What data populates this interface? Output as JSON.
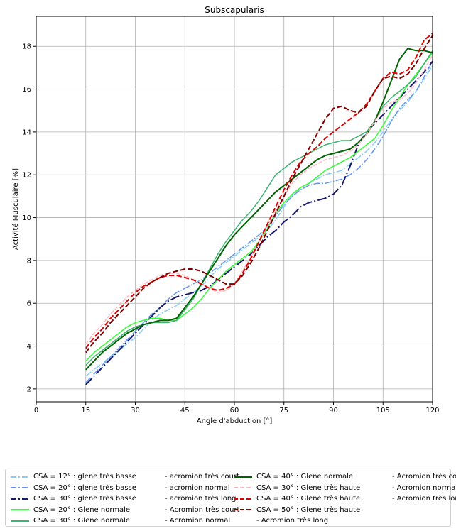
{
  "chart_data": {
    "type": "line",
    "title": "Subscapularis",
    "xlabel": "Angle d'abduction [°]",
    "ylabel": "Activité Musculaire [%]",
    "xlim": [
      0,
      120
    ],
    "ylim": [
      1.4,
      19.4
    ],
    "xticks": [
      "0",
      "15",
      "30",
      "45",
      "60",
      "75",
      "90",
      "105",
      "120"
    ],
    "xtick_values": [
      0,
      15,
      30,
      45,
      60,
      75,
      90,
      105,
      120
    ],
    "yticks": [
      "2",
      "4",
      "6",
      "8",
      "10",
      "12",
      "14",
      "16",
      "18"
    ],
    "ytick_values": [
      2,
      4,
      6,
      8,
      10,
      12,
      14,
      16,
      18
    ],
    "grid": true,
    "legend_position": "below",
    "x": [
      15,
      17.5,
      20,
      22.5,
      25,
      27.5,
      30,
      32.5,
      35,
      37.5,
      40,
      42.5,
      45,
      47.5,
      50,
      52.5,
      55,
      57.5,
      60,
      62.5,
      65,
      67.5,
      70,
      72.5,
      75,
      77.5,
      80,
      82.5,
      85,
      87.5,
      90,
      92.5,
      95,
      97.5,
      100,
      102.5,
      105,
      107.5,
      110,
      112.5,
      115,
      117.5,
      120
    ],
    "series": [
      {
        "name": "CSA = 12° : glene très basse",
        "color": "#87cefa",
        "dash": "dashdot",
        "width": 1.5,
        "values": [
          2.6,
          2.9,
          3.2,
          3.5,
          3.8,
          4.1,
          4.4,
          4.8,
          5.2,
          5.5,
          5.7,
          5.9,
          6.2,
          6.5,
          6.8,
          7.2,
          7.6,
          7.9,
          8.2,
          8.5,
          8.8,
          9.1,
          9.4,
          9.9,
          10.5,
          11.0,
          11.4,
          11.6,
          11.8,
          12.0,
          12.1,
          12.2,
          12.5,
          12.8,
          13.1,
          13.5,
          14.0,
          14.6,
          15.0,
          15.4,
          15.9,
          16.5,
          17.1
        ]
      },
      {
        "name": "CSA = 20° : glene très basse",
        "color": "#6495ed",
        "dash": "dashdot",
        "width": 1.5,
        "values": [
          2.3,
          2.7,
          3.1,
          3.5,
          3.9,
          4.3,
          4.7,
          5.1,
          5.5,
          5.8,
          6.2,
          6.5,
          6.7,
          6.9,
          7.1,
          7.4,
          7.7,
          8.0,
          8.3,
          8.6,
          8.9,
          9.2,
          9.6,
          10.1,
          10.6,
          11.0,
          11.3,
          11.5,
          11.6,
          11.6,
          11.7,
          11.8,
          12.0,
          12.3,
          12.7,
          13.2,
          13.8,
          14.5,
          15.1,
          15.5,
          15.9,
          16.6,
          17.3
        ]
      },
      {
        "name": "CSA = 30° : glene très basse",
        "color": "#191970",
        "dash": "dashdot",
        "width": 2,
        "values": [
          2.2,
          2.6,
          3.0,
          3.4,
          3.8,
          4.2,
          4.6,
          5.0,
          5.4,
          5.8,
          6.1,
          6.3,
          6.4,
          6.5,
          6.6,
          6.8,
          7.1,
          7.4,
          7.7,
          8.0,
          8.3,
          8.7,
          9.1,
          9.4,
          9.8,
          10.1,
          10.5,
          10.7,
          10.8,
          10.9,
          11.1,
          11.5,
          12.4,
          13.4,
          14.0,
          14.4,
          14.8,
          15.2,
          15.6,
          16.0,
          16.4,
          16.8,
          17.3
        ]
      },
      {
        "name": "CSA = 20° : Glene normale",
        "color": "#32ff32",
        "dash": "solid",
        "width": 1.5,
        "values": [
          3.3,
          3.7,
          4.0,
          4.3,
          4.6,
          4.9,
          5.1,
          5.2,
          5.3,
          5.3,
          5.2,
          5.2,
          5.5,
          5.8,
          6.2,
          6.7,
          7.1,
          7.5,
          7.8,
          8.1,
          8.4,
          8.9,
          9.5,
          10.2,
          10.7,
          11.1,
          11.4,
          11.6,
          11.9,
          12.2,
          12.4,
          12.6,
          12.8,
          13.1,
          13.4,
          13.7,
          14.3,
          15.0,
          15.6,
          16.2,
          16.7,
          17.2,
          17.7
        ]
      },
      {
        "name": "CSA = 30° : Glene normale",
        "color": "#3cb371",
        "dash": "solid",
        "width": 1.5,
        "values": [
          3.1,
          3.5,
          3.8,
          4.1,
          4.4,
          4.7,
          4.9,
          5.0,
          5.1,
          5.1,
          5.1,
          5.2,
          5.7,
          6.2,
          6.9,
          7.6,
          8.3,
          8.9,
          9.4,
          9.9,
          10.3,
          10.8,
          11.4,
          12.0,
          12.3,
          12.6,
          12.8,
          13.0,
          13.2,
          13.4,
          13.5,
          13.6,
          13.6,
          13.8,
          14.0,
          14.5,
          15.2,
          15.6,
          15.9,
          16.2,
          16.6,
          17.2,
          17.8
        ]
      },
      {
        "name": "CSA = 40° : Glene normale",
        "color": "#006400",
        "dash": "solid",
        "width": 2,
        "values": [
          2.9,
          3.3,
          3.7,
          4.0,
          4.3,
          4.6,
          4.8,
          5.0,
          5.1,
          5.2,
          5.2,
          5.3,
          5.8,
          6.3,
          6.9,
          7.5,
          8.1,
          8.7,
          9.2,
          9.6,
          10.0,
          10.4,
          10.8,
          11.2,
          11.5,
          11.8,
          12.1,
          12.4,
          12.7,
          12.9,
          13.0,
          13.1,
          13.2,
          13.5,
          13.9,
          14.5,
          15.4,
          16.4,
          17.4,
          17.9,
          17.8,
          17.8,
          17.7
        ]
      },
      {
        "name": "CSA = 30° : Glene très haute",
        "color": "#ffb6c1",
        "dash": "dashed",
        "width": 1.5,
        "values": [
          4.1,
          4.6,
          5.0,
          5.5,
          5.9,
          6.3,
          6.6,
          6.9,
          7.1,
          7.3,
          7.4,
          7.4,
          7.3,
          7.1,
          6.9,
          6.7,
          6.5,
          6.6,
          6.9,
          7.5,
          8.2,
          8.9,
          9.6,
          10.3,
          11.0,
          11.6,
          12.0,
          12.3,
          12.5,
          12.7,
          12.8,
          12.9,
          13.1,
          13.4,
          13.9,
          14.5,
          15.1,
          15.4,
          15.5,
          15.8,
          16.3,
          16.9,
          17.6
        ]
      },
      {
        "name": "CSA = 40° : Glene très haute",
        "color": "#e00000",
        "dash": "dashed",
        "width": 2,
        "values": [
          3.9,
          4.4,
          4.8,
          5.3,
          5.7,
          6.1,
          6.5,
          6.8,
          7.0,
          7.2,
          7.3,
          7.3,
          7.2,
          7.1,
          6.9,
          6.7,
          6.6,
          6.7,
          6.9,
          7.4,
          8.1,
          8.9,
          9.7,
          10.5,
          11.3,
          12.0,
          12.6,
          13.0,
          13.3,
          13.7,
          14.0,
          14.3,
          14.6,
          14.9,
          15.3,
          15.9,
          16.5,
          16.8,
          16.7,
          16.9,
          17.5,
          18.3,
          18.6
        ]
      },
      {
        "name": "CSA = 50° : Glene très haute",
        "color": "#800000",
        "dash": "dashed",
        "width": 2,
        "values": [
          3.7,
          4.2,
          4.6,
          5.1,
          5.5,
          5.9,
          6.3,
          6.7,
          7.0,
          7.2,
          7.4,
          7.5,
          7.6,
          7.6,
          7.5,
          7.3,
          7.1,
          6.9,
          6.9,
          7.3,
          7.9,
          8.6,
          9.4,
          10.2,
          11.0,
          11.8,
          12.5,
          13.2,
          13.9,
          14.6,
          15.1,
          15.2,
          15.0,
          14.9,
          15.2,
          15.9,
          16.5,
          16.6,
          16.5,
          16.7,
          17.2,
          17.9,
          18.5
        ]
      }
    ]
  },
  "legend": [
    {
      "label": "CSA = 12° : glene très basse",
      "color": "#87cefa",
      "dash": "dashdot"
    },
    {
      "label": "CSA = 20° : glene très basse",
      "color": "#6495ed",
      "dash": "dashdot"
    },
    {
      "label": "CSA = 30° : glene très basse",
      "color": "#191970",
      "dash": "dashdot"
    },
    {
      "label": "CSA = 20° : Glene normale",
      "color": "#32ff32",
      "dash": "solid"
    },
    {
      "label": "CSA = 30° : Glene normale",
      "color": "#3cb371",
      "dash": "solid"
    },
    {
      "label": "-  acromion très court",
      "color": "#ffffff",
      "dash": "solid"
    },
    {
      "label": "-  acromion normal",
      "color": "#ffffff",
      "dash": "solid"
    },
    {
      "label": "-  acromion très long",
      "color": "#ffffff",
      "dash": "solid"
    },
    {
      "label": "-  Acromion très court",
      "color": "#ffffff",
      "dash": "solid"
    },
    {
      "label": "-  Acromion normal",
      "color": "#ffffff",
      "dash": "solid"
    },
    {
      "label": "CSA = 40° : Glene normale",
      "color": "#006400",
      "dash": "solid"
    },
    {
      "label": "CSA = 30° : Glene très haute",
      "color": "#ffb6c1",
      "dash": "dashed"
    },
    {
      "label": "CSA = 40° : Glene très haute",
      "color": "#e00000",
      "dash": "dashed"
    },
    {
      "label": "CSA = 50° : Glene très haute",
      "color": "#800000",
      "dash": "dashed"
    },
    {
      "label": "-  Acromion très long",
      "color": "#ffffff",
      "dash": "solid"
    },
    {
      "label": "-  Acromion très court",
      "color": "#ffffff",
      "dash": "solid"
    },
    {
      "label": "-  Acromion normal",
      "color": "#ffffff",
      "dash": "solid"
    },
    {
      "label": "-  Acromion très long",
      "color": "#ffffff",
      "dash": "solid"
    }
  ]
}
